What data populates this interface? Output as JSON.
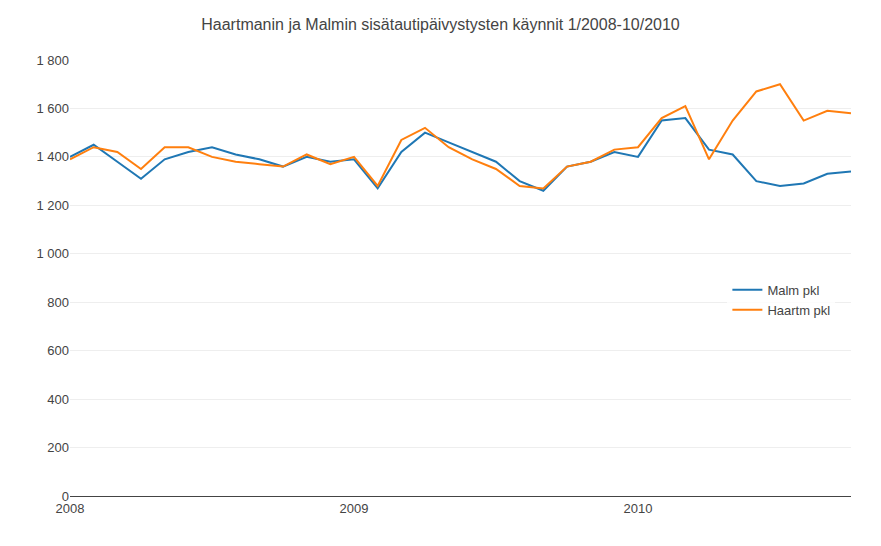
{
  "chart_data": {
    "type": "line",
    "title": "Haartmanin ja Malmin sisätautipäivystysten käynnit 1/2008-10/2010",
    "categories": [
      "2008",
      null,
      null,
      null,
      null,
      null,
      null,
      null,
      null,
      null,
      null,
      null,
      "2009",
      null,
      null,
      null,
      null,
      null,
      null,
      null,
      null,
      null,
      null,
      null,
      "2010",
      null,
      null,
      null,
      null,
      null,
      null,
      null,
      null,
      null
    ],
    "series": [
      {
        "name": "Malm pkl",
        "values": [
          1400,
          1450,
          1380,
          1310,
          1390,
          1420,
          1440,
          1410,
          1390,
          1360,
          1400,
          1380,
          1390,
          1270,
          1420,
          1500,
          1460,
          1420,
          1380,
          1300,
          1260,
          1360,
          1380,
          1420,
          1400,
          1550,
          1560,
          1430,
          1410,
          1300,
          1280,
          1290,
          1330,
          1340
        ]
      },
      {
        "name": "Haartm pkl",
        "values": [
          1390,
          1440,
          1420,
          1350,
          1440,
          1440,
          1400,
          1380,
          1370,
          1360,
          1410,
          1370,
          1400,
          1280,
          1470,
          1520,
          1440,
          1390,
          1350,
          1280,
          1270,
          1360,
          1380,
          1430,
          1440,
          1560,
          1610,
          1390,
          1550,
          1670,
          1700,
          1550,
          1590,
          1580
        ]
      }
    ],
    "ylim": [
      0,
      1800
    ],
    "yticks": [
      0,
      200,
      400,
      600,
      800,
      {
        "value": 1000,
        "label": "1 000"
      },
      {
        "value": 1200,
        "label": "1 200"
      },
      {
        "value": 1400,
        "label": "1 400"
      },
      {
        "value": 1600,
        "label": "1 600"
      },
      {
        "value": 1800,
        "label": "1 800"
      }
    ],
    "grid": true,
    "legend": "center right"
  }
}
